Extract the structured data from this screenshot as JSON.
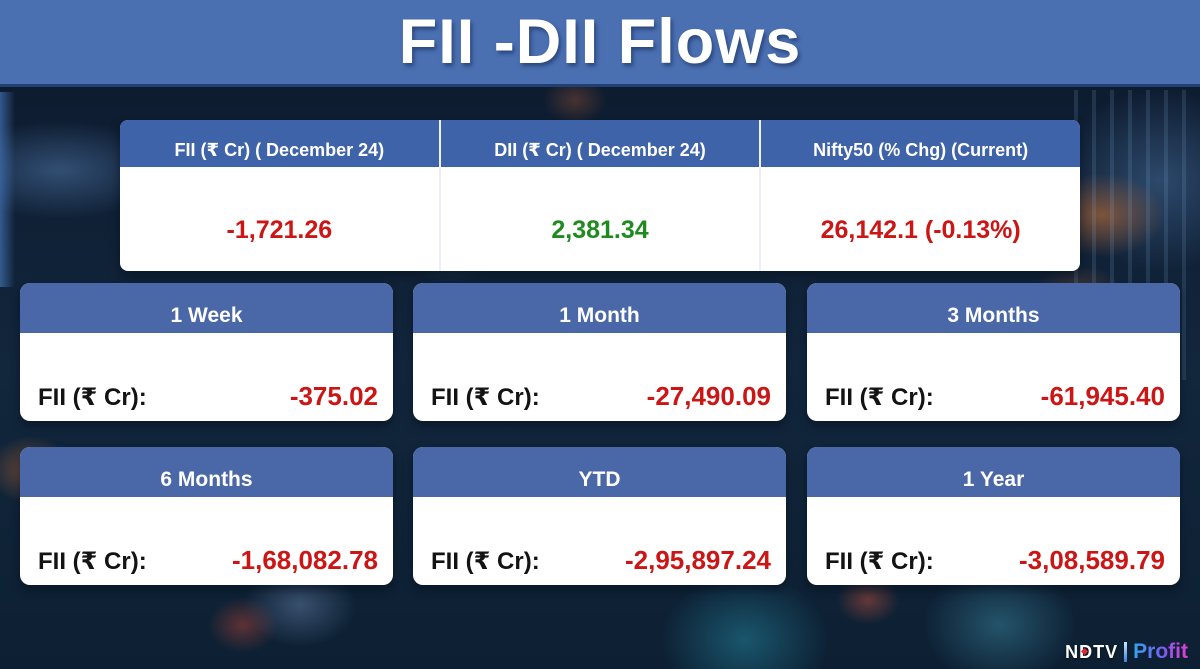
{
  "title": "FII -DII Flows",
  "colors": {
    "title_bar_blue": "#4b70b2",
    "panel_header_blue": "#3f63a9",
    "negative_red": "#cc1515",
    "positive_green": "#1f8b1f",
    "card_bg": "#ffffff"
  },
  "summary_table": {
    "columns": [
      {
        "header": "FII (₹ Cr) ( December 24)",
        "value": "-1,721.26",
        "value_color": "#cc1515"
      },
      {
        "header": "DII (₹ Cr) ( December 24)",
        "value": "2,381.34",
        "value_color": "#1f8b1f"
      },
      {
        "header": "Nifty50 (% Chg) (Current)",
        "value": "26,142.1 (-0.13%)",
        "value_color": "#cc1515"
      }
    ]
  },
  "period_cards": [
    {
      "period": "1 Week",
      "label": "FII (₹ Cr):",
      "value": "-375.02"
    },
    {
      "period": "1 Month",
      "label": "FII (₹ Cr):",
      "value": "-27,490.09"
    },
    {
      "period": "3 Months",
      "label": "FII (₹ Cr):",
      "value": "-61,945.40"
    },
    {
      "period": "6 Months",
      "label": "FII (₹ Cr):",
      "value": "-1,68,082.78"
    },
    {
      "period": "YTD",
      "label": "FII (₹ Cr):",
      "value": "-2,95,897.24"
    },
    {
      "period": "1 Year",
      "label": "FII (₹ Cr):",
      "value": "-3,08,589.79"
    }
  ],
  "logo": {
    "brand": "NDTV",
    "product": "Profit"
  },
  "chart_data": {
    "type": "table",
    "title": "FII -DII Flows",
    "summary": {
      "columns": [
        "FII (₹ Cr) ( December 24)",
        "DII (₹ Cr) ( December 24)",
        "Nifty50 (% Chg) (Current)"
      ],
      "values": [
        "-1,721.26",
        "2,381.34",
        "26,142.1 (-0.13%)"
      ]
    },
    "fii_flows_by_period": {
      "categories": [
        "1 Week",
        "1 Month",
        "3 Months",
        "6 Months",
        "YTD",
        "1 Year"
      ],
      "values_cr": [
        -375.02,
        -27490.09,
        -61945.4,
        -168082.78,
        -295897.24,
        -308589.79
      ],
      "unit": "₹ Cr"
    },
    "nifty50": {
      "level": 26142.1,
      "pct_chg_current": -0.13
    }
  }
}
